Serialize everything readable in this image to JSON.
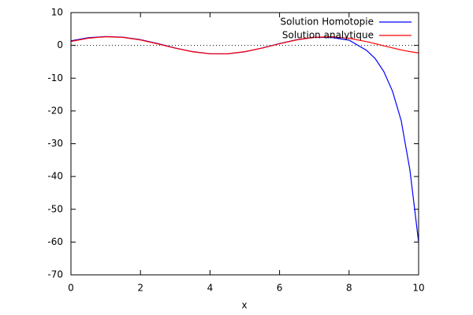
{
  "chart_data": {
    "type": "line",
    "x_label": "x",
    "x": [
      0,
      0.5,
      1,
      1.5,
      2,
      2.5,
      3,
      3.5,
      4,
      4.5,
      5,
      5.5,
      6,
      6.5,
      7,
      7.5,
      8,
      8.5,
      8.75,
      9,
      9.25,
      9.5,
      9.75,
      10
    ],
    "series": [
      {
        "name": "Solution Homotopie",
        "color": "#0000ff",
        "values": [
          1.4,
          2.35,
          2.7,
          2.5,
          1.75,
          0.55,
          -0.8,
          -1.9,
          -2.55,
          -2.6,
          -1.95,
          -0.8,
          0.55,
          1.75,
          2.45,
          2.4,
          1.6,
          -1.5,
          -4,
          -8,
          -14,
          -23,
          -38,
          -60
        ]
      },
      {
        "name": "Solution analytique",
        "color": "#ff0000",
        "values": [
          1.2,
          2.19,
          2.64,
          2.44,
          1.65,
          0.45,
          -0.86,
          -1.95,
          -2.57,
          -2.56,
          -1.92,
          -0.82,
          0.49,
          1.68,
          2.46,
          2.64,
          2.16,
          1.16,
          0.53,
          -0.13,
          -0.77,
          -1.39,
          -1.9,
          -2.31
        ]
      }
    ],
    "xlim": [
      0,
      10
    ],
    "xticks": [
      0,
      2,
      4,
      6,
      8,
      10
    ],
    "ylim": [
      -70,
      10
    ],
    "yticks": [
      -70,
      -60,
      -50,
      -40,
      -30,
      -20,
      -10,
      0,
      10
    ],
    "zero_axis": true,
    "legend": "top-right"
  }
}
